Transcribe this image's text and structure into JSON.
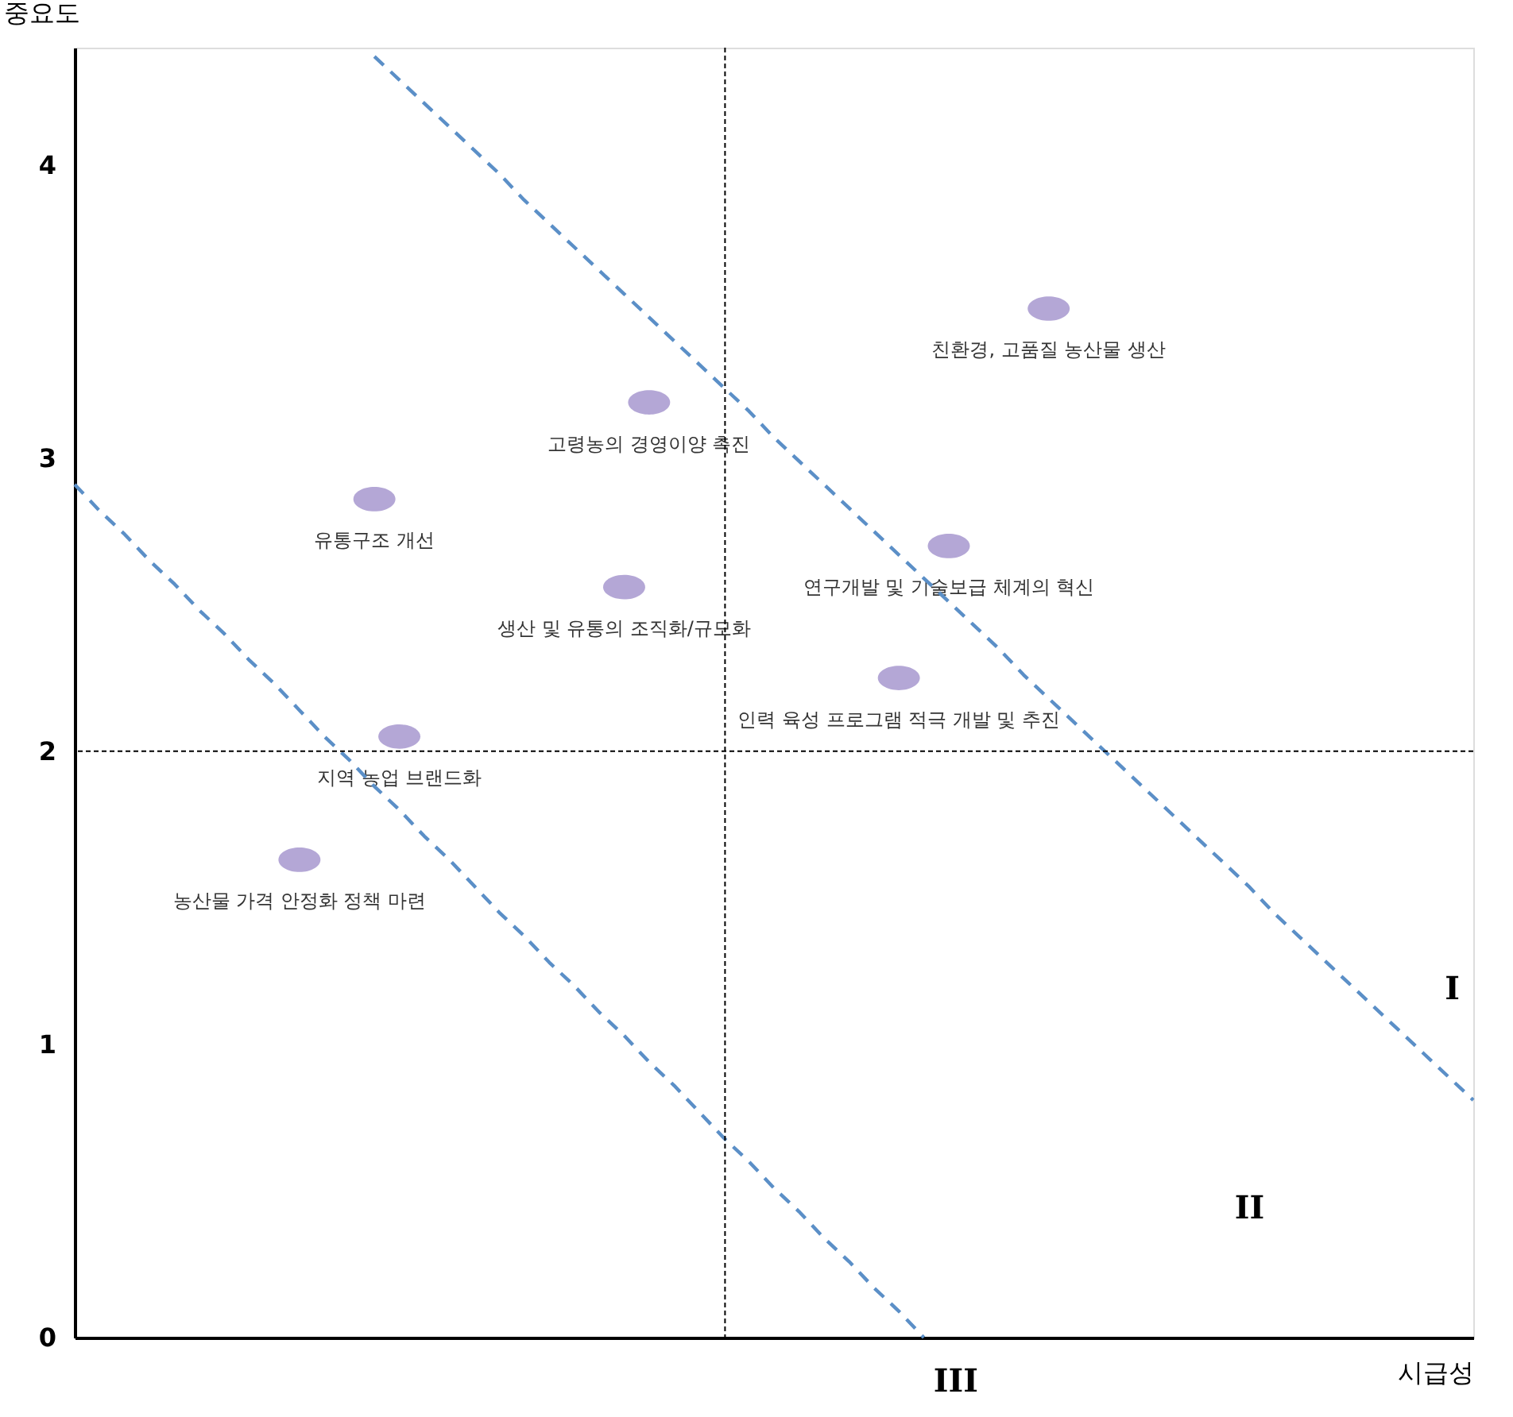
{
  "chart_data": {
    "type": "scatter",
    "xlabel": "시급성",
    "ylabel": "중요도",
    "categories": [
      null,
      null,
      null,
      null,
      null,
      null,
      null,
      null,
      null,
      null,
      null,
      null,
      null,
      null,
      null,
      null,
      null,
      null,
      null,
      null,
      null,
      null,
      null,
      null,
      null,
      null,
      null,
      null,
      null,
      null,
      null,
      null,
      null,
      null,
      null,
      null,
      null,
      null,
      null,
      null,
      null,
      null,
      null,
      null,
      null,
      null,
      null,
      null,
      null,
      null,
      null,
      null,
      null,
      null,
      null,
      null,
      null
    ],
    "ylim": [
      0,
      4.4
    ],
    "yticks": [
      0,
      1,
      2,
      3,
      4
    ],
    "tick_labels": "y",
    "series": [
      {
        "color": "#b4a7d6",
        "marker": "circle",
        "values": [
          null,
          null,
          null,
          null,
          null,
          null,
          null,
          null,
          null,
          1.63,
          null,
          null,
          2.86,
          2.05,
          null,
          null,
          null,
          null,
          null,
          null,
          null,
          null,
          2.56,
          3.19,
          null,
          null,
          null,
          null,
          null,
          null,
          null,
          null,
          null,
          2.25,
          null,
          2.7,
          null,
          null,
          null,
          3.51,
          null,
          null,
          null,
          null,
          null,
          null,
          null,
          null,
          null,
          null,
          null,
          null,
          null,
          null,
          null,
          null,
          null
        ],
        "value_labels": [
          null,
          null,
          null,
          null,
          null,
          null,
          null,
          null,
          null,
          "농산물 가격 안정화 정책 마련",
          null,
          null,
          "유통구조 개선",
          "지역 농업 브랜드화",
          null,
          null,
          null,
          null,
          null,
          null,
          null,
          null,
          "생산 및 유통의 조직화/규모화",
          "고령농의 경영이양 촉진",
          null,
          null,
          null,
          null,
          null,
          null,
          null,
          null,
          null,
          "인력 육성 프로그램 적극 개발 및 추진",
          null,
          "연구개발 및 기술보급 체계의 혁신",
          null,
          null,
          null,
          "친환경, 고품질 농산물 생산",
          null,
          null,
          null,
          null,
          null,
          null,
          null,
          null,
          null,
          null,
          null,
          null,
          null,
          null,
          null,
          null,
          null
        ]
      },
      {
        "type": "line",
        "color": "#5b8fc7",
        "line_style": "dashed",
        "values": [
          null,
          null,
          null,
          null,
          null,
          null,
          null,
          null,
          null,
          null,
          null,
          null,
          4.37,
          4.29,
          4.21,
          4.13,
          4.05,
          3.97,
          3.88,
          3.8,
          3.72,
          3.64,
          3.56,
          3.48,
          3.4,
          3.32,
          3.24,
          3.16,
          3.07,
          2.99,
          2.91,
          2.83,
          2.75,
          2.67,
          2.59,
          2.51,
          2.43,
          2.35,
          2.26,
          2.18,
          2.1,
          2.02,
          1.94,
          1.86,
          1.78,
          1.7,
          1.62,
          1.54,
          1.45,
          1.37,
          1.29,
          1.21,
          1.13,
          1.05,
          0.97,
          0.89,
          0.81
        ]
      },
      {
        "type": "line",
        "color": "#5b8fc7",
        "line_style": "dashed",
        "values": [
          2.91,
          2.82,
          2.74,
          2.65,
          2.57,
          2.48,
          2.4,
          2.31,
          2.23,
          2.14,
          2.05,
          1.97,
          1.88,
          1.8,
          1.71,
          1.63,
          1.54,
          1.45,
          1.37,
          1.28,
          1.2,
          1.11,
          1.03,
          0.94,
          0.86,
          0.77,
          0.68,
          0.6,
          0.51,
          0.43,
          0.34,
          0.26,
          0.17,
          0.09,
          0,
          null,
          null,
          null,
          null,
          null,
          null,
          null,
          null,
          null,
          null,
          null,
          null,
          null,
          null,
          null,
          null,
          null,
          null,
          null,
          null,
          null,
          null
        ]
      }
    ],
    "ref_lines": [
      {
        "axis": "y",
        "value": 2,
        "line_style": "dotted",
        "color": "#000000"
      }
    ],
    "annotations": [
      "I",
      "II",
      "III"
    ]
  }
}
